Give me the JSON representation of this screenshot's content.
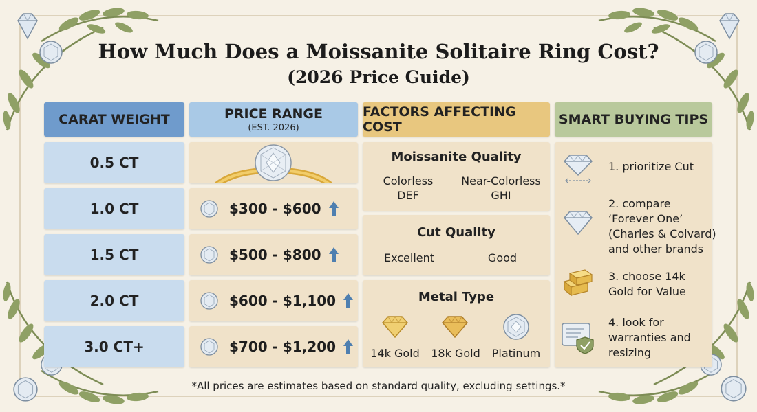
{
  "title": "How Much Does a Moissanite Solitaire Ring Cost?",
  "subtitle": "(2026 Price Guide)",
  "colors": {
    "carat_header": "#6f9bcc",
    "price_header": "#a9c9e6",
    "factors_header": "#e8c77f",
    "tips_header": "#b9c99c",
    "carat_cell": "#c9dcee",
    "cell": "#f0e2c9",
    "gold": "#e2b84a",
    "arrow": "#4e7fb0"
  },
  "headers": {
    "carat": "CARAT WEIGHT",
    "price": "PRICE RANGE",
    "price_sub": "(EST. 2026)",
    "factors": "FACTORS AFFECTING COST",
    "tips": "SMART BUYING TIPS"
  },
  "rows": [
    {
      "carat": "0.5 CT",
      "image": "ring-icon"
    },
    {
      "carat": "1.0 CT",
      "price": "$300 - $600"
    },
    {
      "carat": "1.5 CT",
      "price": "$500 - $800"
    },
    {
      "carat": "2.0 CT",
      "price": "$600 - $1,100"
    },
    {
      "carat": "3.0 CT+",
      "price": "$700 - $1,200"
    }
  ],
  "factors": {
    "quality": {
      "title": "Moissanite Quality",
      "options": [
        {
          "name": "Colorless",
          "grade": "DEF"
        },
        {
          "name": "Near-Colorless",
          "grade": "GHI"
        }
      ]
    },
    "cut": {
      "title": "Cut Quality",
      "options": [
        "Excellent",
        "Good"
      ]
    },
    "metal": {
      "title": "Metal Type",
      "options": [
        "14k Gold",
        "18k Gold",
        "Platinum"
      ]
    }
  },
  "tips": [
    {
      "icon": "diamond-icon",
      "lines": [
        "1. prioritize Cut"
      ]
    },
    {
      "icon": "diamond-icon",
      "lines": [
        "2. compare",
        "‘Forever One’",
        "(Charles & Colvard)",
        "and other brands"
      ]
    },
    {
      "icon": "gold-bars-icon",
      "lines": [
        "3. choose 14k",
        "Gold for Value"
      ]
    },
    {
      "icon": "warranty-certificate-icon",
      "lines": [
        "4. look for",
        "warranties and",
        "resizing"
      ]
    }
  ],
  "footnote": "*All prices are estimates based on standard quality, excluding settings.*"
}
